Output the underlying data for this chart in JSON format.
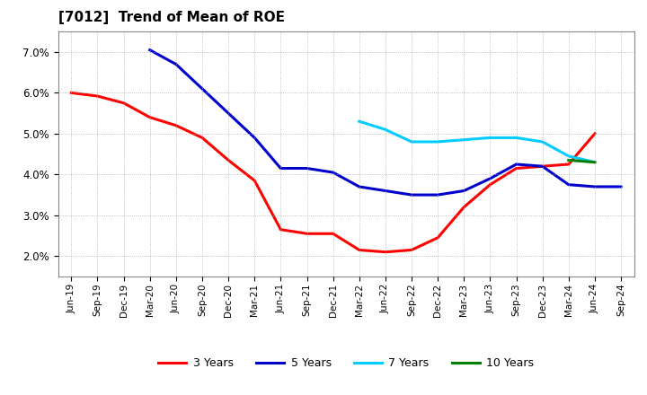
{
  "title": "[7012]  Trend of Mean of ROE",
  "background_color": "#ffffff",
  "plot_bg_color": "#ffffff",
  "grid_color": "#aaaaaa",
  "ylim": [
    0.015,
    0.075
  ],
  "yticks": [
    0.02,
    0.03,
    0.04,
    0.05,
    0.06,
    0.07
  ],
  "x_labels": [
    "Jun-19",
    "Sep-19",
    "Dec-19",
    "Mar-20",
    "Jun-20",
    "Sep-20",
    "Dec-20",
    "Mar-21",
    "Jun-21",
    "Sep-21",
    "Dec-21",
    "Mar-22",
    "Jun-22",
    "Sep-22",
    "Dec-22",
    "Mar-23",
    "Jun-23",
    "Sep-23",
    "Dec-23",
    "Mar-24",
    "Jun-24",
    "Sep-24"
  ],
  "series": {
    "3 Years": {
      "color": "#ff0000",
      "data_y": [
        0.06,
        0.0592,
        0.0575,
        0.054,
        0.052,
        0.049,
        0.0435,
        0.0385,
        0.0265,
        0.0255,
        0.0255,
        0.0215,
        0.021,
        0.0215,
        0.0245,
        0.032,
        0.0375,
        0.0415,
        0.042,
        0.0425,
        0.05,
        null
      ]
    },
    "5 Years": {
      "color": "#0000cc",
      "data_y": [
        null,
        null,
        null,
        0.0705,
        0.067,
        0.061,
        0.055,
        0.049,
        0.0415,
        0.0415,
        0.0405,
        0.037,
        0.036,
        0.035,
        0.035,
        0.036,
        0.039,
        0.0425,
        0.042,
        0.0375,
        0.037,
        0.037
      ]
    },
    "7 Years": {
      "color": "#00ccff",
      "data_y": [
        null,
        null,
        null,
        null,
        null,
        null,
        null,
        null,
        null,
        null,
        null,
        0.053,
        0.051,
        0.048,
        0.048,
        0.0485,
        0.049,
        0.049,
        0.048,
        0.0445,
        0.043,
        null
      ]
    },
    "10 Years": {
      "color": "#008000",
      "data_y": [
        null,
        null,
        null,
        null,
        null,
        null,
        null,
        null,
        null,
        null,
        null,
        null,
        null,
        null,
        null,
        null,
        null,
        null,
        null,
        0.0435,
        0.043,
        null
      ]
    }
  },
  "legend_labels": [
    "3 Years",
    "5 Years",
    "7 Years",
    "10 Years"
  ]
}
